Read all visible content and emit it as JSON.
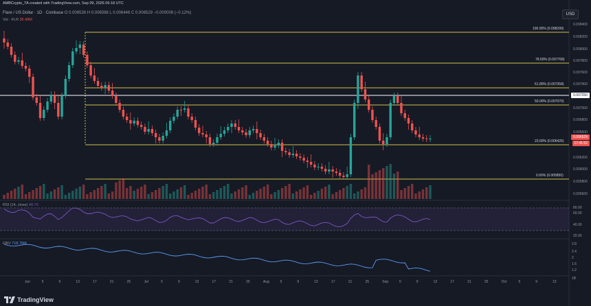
{
  "header": {
    "attribution": "AMBCrypto_TA created with TradingView.com, Sep 09, 2026 06:18 UTC"
  },
  "symbol": {
    "name": "Flare / US Dollar · 1D · Coinbase",
    "ohlc": "O 0.006538 H 0.006598 L 0.006446 C 0.006529 −0.000008 (−0.12%)",
    "volume_label": "Vol · FLR",
    "volume_value": "35.49M"
  },
  "currency_button": "USD",
  "price_axis": [
    "0.008400",
    "0.008200",
    "0.008000",
    "0.007800",
    "0.007600",
    "0.007400",
    "0.007000",
    "0.006800",
    "0.006600",
    "0.006200",
    "0.006000",
    "0.005800",
    "0.005600"
  ],
  "fib_levels": [
    {
      "label": "100.00% (0.008290)"
    },
    {
      "label": "78.60% (0.007768)"
    },
    {
      "label": "61.80% (0.007358)"
    },
    {
      "label": "50.00% (0.007070)"
    },
    {
      "label": "23.60% (0.006426)"
    },
    {
      "label": "0.00% (0.005850)"
    }
  ],
  "price_tags": {
    "white": "0.007250",
    "current": "0.006529",
    "countdown": "17:41:52"
  },
  "rsi": {
    "label": "RSI (14, close)",
    "value": "48.70",
    "axis": [
      "80.00",
      "60.00",
      "40.00",
      "20.00"
    ]
  },
  "gbv": {
    "label": "GBV",
    "value": "718.75M",
    "axis": [
      "2.8",
      "2.4",
      "2",
      "1.6",
      "1.2",
      "1B"
    ]
  },
  "time_axis": [
    "Jun",
    "5",
    "9",
    "13",
    "17",
    "21",
    "25",
    "Jul",
    "5",
    "9",
    "13",
    "17",
    "21",
    "25",
    "Aug",
    "5",
    "9",
    "13",
    "17",
    "21",
    "25",
    "Sep",
    "5",
    "9",
    "13",
    "17",
    "21",
    "25",
    "Oct",
    "5",
    "9",
    "13"
  ],
  "brand": "TradingView",
  "colors": {
    "up": "#26a69a",
    "down": "#ef5350",
    "fib": "#d4c34a",
    "background": "#161a25"
  }
}
